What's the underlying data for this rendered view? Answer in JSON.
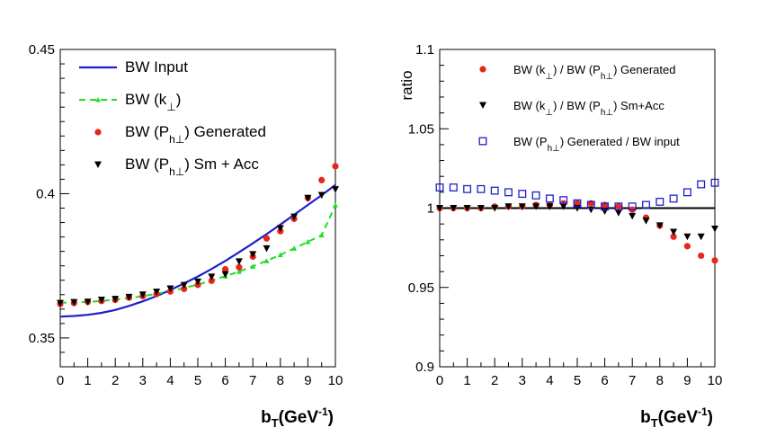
{
  "chart_data": [
    {
      "type": "line+scatter",
      "title": "",
      "xlabel": {
        "main": "b",
        "sub": "T",
        "unit": "(GeV",
        "sup": "-1",
        "close": ")"
      },
      "ylabel": "",
      "xlim": [
        0,
        10
      ],
      "ylim": [
        0.34,
        0.45
      ],
      "yticks": [
        "0.35",
        "0.4",
        "0.45"
      ],
      "xticks": [
        "0",
        "1",
        "2",
        "3",
        "4",
        "5",
        "6",
        "7",
        "8",
        "9",
        "10"
      ],
      "legend_position": "top-left",
      "legend": [
        {
          "pre": "BW Input",
          "sub": "",
          "post": "",
          "color": "#1f1fcc",
          "marker": "line"
        },
        {
          "pre": "BW (k",
          "sub": "⊥",
          "post": ")",
          "color": "#22dd22",
          "marker": "dashed-triangle"
        },
        {
          "pre": "BW (P",
          "sub": "h⊥",
          "post": ") Generated",
          "color": "#e8261c",
          "marker": "circle"
        },
        {
          "pre": "BW (P",
          "sub": "h⊥",
          "post": ") Sm + Acc",
          "color": "#000000",
          "marker": "triangle-down"
        }
      ],
      "series": [
        {
          "name": "BW Input",
          "style": "line",
          "color": "#1f1fcc",
          "x": [
            0,
            0.5,
            1,
            1.5,
            2,
            2.5,
            3,
            3.5,
            4,
            4.5,
            5,
            5.5,
            6,
            6.5,
            7,
            7.5,
            8,
            8.5,
            9,
            9.5,
            10
          ],
          "y": [
            0.3574,
            0.3576,
            0.358,
            0.3587,
            0.3597,
            0.3611,
            0.3627,
            0.3645,
            0.3666,
            0.3689,
            0.3713,
            0.3739,
            0.3767,
            0.3797,
            0.3828,
            0.386,
            0.3893,
            0.3927,
            0.3961,
            0.3995,
            0.403
          ]
        },
        {
          "name": "BW (k⊥)",
          "style": "dashed-triangle",
          "color": "#22dd22",
          "x": [
            0,
            0.5,
            1,
            1.5,
            2,
            2.5,
            3,
            3.5,
            4,
            4.5,
            5,
            5.5,
            6,
            6.5,
            7,
            7.5,
            8,
            8.5,
            9,
            9.5,
            10
          ],
          "y": [
            0.3622,
            0.3623,
            0.3625,
            0.3628,
            0.3633,
            0.3638,
            0.3645,
            0.3653,
            0.3662,
            0.3673,
            0.3685,
            0.3699,
            0.3714,
            0.373,
            0.3748,
            0.3767,
            0.3788,
            0.381,
            0.3833,
            0.3856,
            0.396
          ]
        },
        {
          "name": "BW (Ph⊥) Generated",
          "style": "circle",
          "color": "#e8261c",
          "x": [
            0,
            0.5,
            1,
            1.5,
            2,
            2.5,
            3,
            3.5,
            4,
            4.5,
            5,
            5.5,
            6,
            6.5,
            7,
            7.5,
            8,
            8.5,
            9,
            9.5,
            10
          ],
          "y": [
            0.3618,
            0.3621,
            0.3625,
            0.3628,
            0.3632,
            0.364,
            0.3645,
            0.3652,
            0.3661,
            0.367,
            0.3684,
            0.3698,
            0.3738,
            0.3745,
            0.3782,
            0.3845,
            0.387,
            0.3913,
            0.3985,
            0.4047,
            0.4095
          ]
        },
        {
          "name": "BW (Ph⊥) Sm + Acc",
          "style": "triangle-down",
          "color": "#000000",
          "x": [
            0,
            0.5,
            1,
            1.5,
            2,
            2.5,
            3,
            3.5,
            4,
            4.5,
            5,
            5.5,
            6,
            6.5,
            7,
            7.5,
            8,
            8.5,
            9,
            9.5,
            10
          ],
          "y": [
            0.3621,
            0.3624,
            0.3625,
            0.3632,
            0.3635,
            0.3642,
            0.365,
            0.366,
            0.3671,
            0.3683,
            0.3695,
            0.3712,
            0.372,
            0.3765,
            0.379,
            0.381,
            0.388,
            0.392,
            0.3985,
            0.3995,
            0.4015
          ]
        }
      ]
    },
    {
      "type": "scatter",
      "title": "",
      "xlabel": {
        "main": "b",
        "sub": "T",
        "unit": "(GeV",
        "sup": "-1",
        "close": ")"
      },
      "ylabel": "ratio",
      "xlim": [
        0,
        10
      ],
      "ylim": [
        0.9,
        1.1
      ],
      "yticks": [
        "0.9",
        "0.95",
        "1",
        "1.05",
        "1.1"
      ],
      "xticks": [
        "0",
        "1",
        "2",
        "3",
        "4",
        "5",
        "6",
        "7",
        "8",
        "9",
        "10"
      ],
      "reference_line": 1.0,
      "legend_position": "top-right",
      "legend": [
        {
          "pre": "BW (k",
          "sub": "⊥",
          "mid": ")  / BW (P",
          "sub2": "h⊥",
          "post": ") Generated",
          "color": "#e8261c",
          "marker": "circle"
        },
        {
          "pre": "BW (k",
          "sub": "⊥",
          "mid": ")  / BW (P",
          "sub2": "h⊥",
          "post": ") Sm+Acc",
          "color": "#000000",
          "marker": "triangle-down"
        },
        {
          "pre": "BW (P",
          "sub": "h⊥",
          "mid": ") Generated / BW input",
          "sub2": "",
          "post": "",
          "color": "#1f1fcc",
          "marker": "open-square"
        }
      ],
      "series": [
        {
          "name": "BW (k⊥) / BW (Ph⊥) Generated",
          "style": "circle",
          "color": "#e8261c",
          "x": [
            0,
            0.5,
            1,
            1.5,
            2,
            2.5,
            3,
            3.5,
            4,
            4.5,
            5,
            5.5,
            6,
            6.5,
            7,
            7.5,
            8,
            8.5,
            9,
            9.5,
            10
          ],
          "y": [
            1.0,
            1.0,
            1.0,
            1.0,
            1.001,
            1.001,
            1.001,
            1.002,
            1.002,
            1.003,
            1.003,
            1.003,
            1.002,
            1.001,
            0.999,
            0.994,
            0.989,
            0.982,
            0.976,
            0.97,
            0.967
          ]
        },
        {
          "name": "BW (k⊥) / BW (Ph⊥) Sm+Acc",
          "style": "triangle-down",
          "color": "#000000",
          "x": [
            0,
            0.5,
            1,
            1.5,
            2,
            2.5,
            3,
            3.5,
            4,
            4.5,
            5,
            5.5,
            6,
            6.5,
            7,
            7.5,
            8,
            8.5,
            9,
            9.5,
            10
          ],
          "y": [
            1.0,
            1.0,
            1.0,
            1.0,
            1.0,
            1.001,
            1.001,
            1.001,
            1.001,
            1.001,
            1.0,
            0.999,
            0.998,
            0.997,
            0.995,
            0.992,
            0.989,
            0.985,
            0.982,
            0.982,
            0.987
          ]
        },
        {
          "name": "BW (Ph⊥) Generated / BW input",
          "style": "open-square",
          "color": "#1f1fcc",
          "x": [
            0,
            0.5,
            1,
            1.5,
            2,
            2.5,
            3,
            3.5,
            4,
            4.5,
            5,
            5.5,
            6,
            6.5,
            7,
            7.5,
            8,
            8.5,
            9,
            9.5,
            10
          ],
          "y": [
            1.013,
            1.013,
            1.012,
            1.012,
            1.011,
            1.01,
            1.009,
            1.008,
            1.006,
            1.005,
            1.003,
            1.002,
            1.001,
            1.001,
            1.001,
            1.002,
            1.004,
            1.006,
            1.01,
            1.015,
            1.016
          ]
        }
      ]
    }
  ]
}
